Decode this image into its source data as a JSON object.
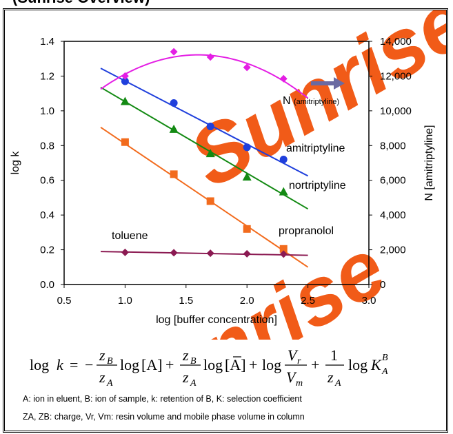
{
  "chart_data": {
    "type": "scatter",
    "xlabel": "log [buffer concentration]",
    "ylabel": "log k",
    "y2label": "N [amitriptyline]",
    "xlim": [
      0.5,
      3.0
    ],
    "ylim": [
      0,
      1.4
    ],
    "y2lim": [
      0,
      14000
    ],
    "x_ticks": [
      "0.5",
      "1.0",
      "1.5",
      "2.0",
      "2.5",
      "3.0"
    ],
    "y_ticks": [
      "0.0",
      "0.2",
      "0.4",
      "0.6",
      "0.8",
      "1.0",
      "1.2",
      "1.4"
    ],
    "y2_ticks": [
      "0",
      "2,000",
      "4,000",
      "6,000",
      "8,000",
      "10,000",
      "12,000",
      "14,000"
    ],
    "grid": false,
    "series": [
      {
        "name": "amitriptyline",
        "color": "#1f3fdc",
        "marker": "circle",
        "points": [
          [
            1.0,
            1.17
          ],
          [
            1.4,
            1.045
          ],
          [
            1.7,
            0.91
          ],
          [
            2.0,
            0.79
          ],
          [
            2.3,
            0.72
          ]
        ],
        "fit": [
          [
            0.8,
            1.245
          ],
          [
            2.5,
            0.625
          ]
        ]
      },
      {
        "name": "nortriptyline",
        "color": "#138a13",
        "marker": "triangle",
        "points": [
          [
            1.0,
            1.055
          ],
          [
            1.4,
            0.895
          ],
          [
            1.7,
            0.755
          ],
          [
            2.0,
            0.62
          ],
          [
            2.3,
            0.535
          ]
        ],
        "fit": [
          [
            0.8,
            1.135
          ],
          [
            2.5,
            0.435
          ]
        ]
      },
      {
        "name": "propranolol",
        "color": "#f26b1d",
        "marker": "square",
        "points": [
          [
            1.0,
            0.82
          ],
          [
            1.4,
            0.635
          ],
          [
            1.7,
            0.48
          ],
          [
            2.0,
            0.32
          ],
          [
            2.3,
            0.205
          ]
        ],
        "fit": [
          [
            0.8,
            0.905
          ],
          [
            2.5,
            0.1
          ]
        ]
      },
      {
        "name": "toluene",
        "color": "#8b1a52",
        "marker": "diamond",
        "points": [
          [
            1.0,
            0.185
          ],
          [
            1.4,
            0.183
          ],
          [
            1.7,
            0.18
          ],
          [
            2.0,
            0.177
          ],
          [
            2.3,
            0.175
          ]
        ],
        "fit": [
          [
            0.8,
            0.19
          ],
          [
            2.5,
            0.168
          ]
        ]
      },
      {
        "name": "N (amitriptyline)",
        "axis": "right",
        "color": "#e41ee4",
        "marker": "diamond",
        "points": [
          [
            1.0,
            12000
          ],
          [
            1.4,
            13400
          ],
          [
            1.7,
            13100
          ],
          [
            2.0,
            12500
          ],
          [
            2.3,
            11850
          ]
        ],
        "fit": "quadratic"
      }
    ],
    "arrow_color": "#6a6aa2",
    "watermark_color": "#f04a00"
  },
  "labels": {
    "amitriptyline": "amitriptyline",
    "nortriptyline": "nortriptyline",
    "propranolol": "propranolol",
    "toluene": "toluene",
    "n_main": "N ",
    "n_sub": "(amitriptyline)"
  },
  "watermark": "Sunrise",
  "formula": {
    "log": "log",
    "k": "k",
    "eq": "=",
    "minus": "−",
    "plus": "+",
    "zB": "z",
    "B": "B",
    "zA": "z",
    "A": "A",
    "one": "1",
    "bracketA": "[A]",
    "Vr": "V",
    "r": "r",
    "Vm": "V",
    "m": "m",
    "K": "K"
  },
  "notes": {
    "line1": "A: ion in eluent,  B: ion of sample,   k: retention of B,  K: selection coefficient",
    "line2": "ZA, ZB: charge,  Vr, Vm: resin volume and mobile phase volume in column"
  },
  "top_text": "(Sunrise Overview)"
}
